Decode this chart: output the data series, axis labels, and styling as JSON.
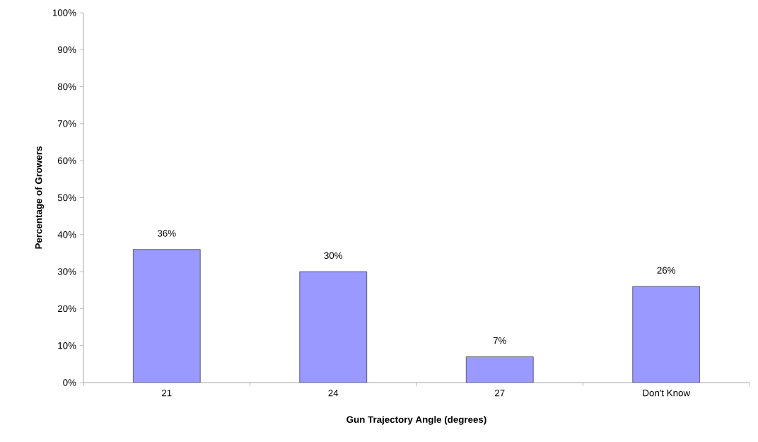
{
  "chart_data": {
    "type": "bar",
    "xlabel": "Gun Trajectory Angle (degrees)",
    "ylabel": "Percentage of Growers",
    "categories": [
      "21",
      "24",
      "27",
      "Don't Know"
    ],
    "values": [
      36,
      30,
      7,
      26
    ],
    "value_labels": [
      "36%",
      "30%",
      "7%",
      "26%"
    ],
    "color": "#9999ff",
    "ylim": [
      0,
      100
    ],
    "yticks": [
      {
        "value": 0,
        "label": "0%"
      },
      {
        "value": 10,
        "label": "10%"
      },
      {
        "value": 20,
        "label": "20%"
      },
      {
        "value": 30,
        "label": "30%"
      },
      {
        "value": 40,
        "label": "40%"
      },
      {
        "value": 50,
        "label": "50%"
      },
      {
        "value": 60,
        "label": "60%"
      },
      {
        "value": 70,
        "label": "70%"
      },
      {
        "value": 80,
        "label": "80%"
      },
      {
        "value": 90,
        "label": "90%"
      },
      {
        "value": 100,
        "label": "100%"
      }
    ],
    "grid": false
  }
}
